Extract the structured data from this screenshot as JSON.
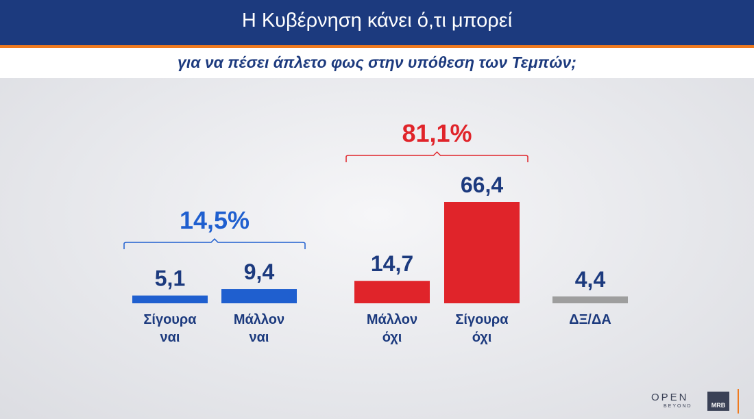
{
  "header": {
    "title": "Η Κυβέρνηση κάνει ό,τι μπορεί",
    "subtitle": "για να πέσει άπλετο φως στην υπόθεση των Τεμπών;"
  },
  "colors": {
    "blue": "#1f5fcf",
    "red": "#e0242a",
    "gray": "#9e9e9e",
    "navy": "#1c3a7e",
    "accent": "#f07a1e"
  },
  "chart_data": {
    "type": "bar",
    "categories": [
      [
        "Σίγουρα",
        "ναι"
      ],
      [
        "Μάλλον",
        "ναι"
      ],
      [
        "Μάλλον",
        "όχι"
      ],
      [
        "Σίγουρα",
        "όχι"
      ],
      [
        "ΔΞ/ΔΑ"
      ]
    ],
    "values": [
      5.1,
      9.4,
      14.7,
      66.4,
      4.4
    ],
    "value_labels": [
      "5,1",
      "9,4",
      "14,7",
      "66,4",
      "4,4"
    ],
    "bar_colors": [
      "#1f5fcf",
      "#1f5fcf",
      "#e0242a",
      "#e0242a",
      "#9e9e9e"
    ],
    "groups": [
      {
        "label": "14,5%",
        "bars": [
          0,
          1
        ],
        "color": "#1f5fcf"
      },
      {
        "label": "81,1%",
        "bars": [
          2,
          3
        ],
        "color": "#e0242a"
      }
    ],
    "ylim": [
      0,
      66.4
    ]
  },
  "branding": {
    "open": "OPEN",
    "beyond": "BEYOND",
    "mrb": "MRB"
  }
}
